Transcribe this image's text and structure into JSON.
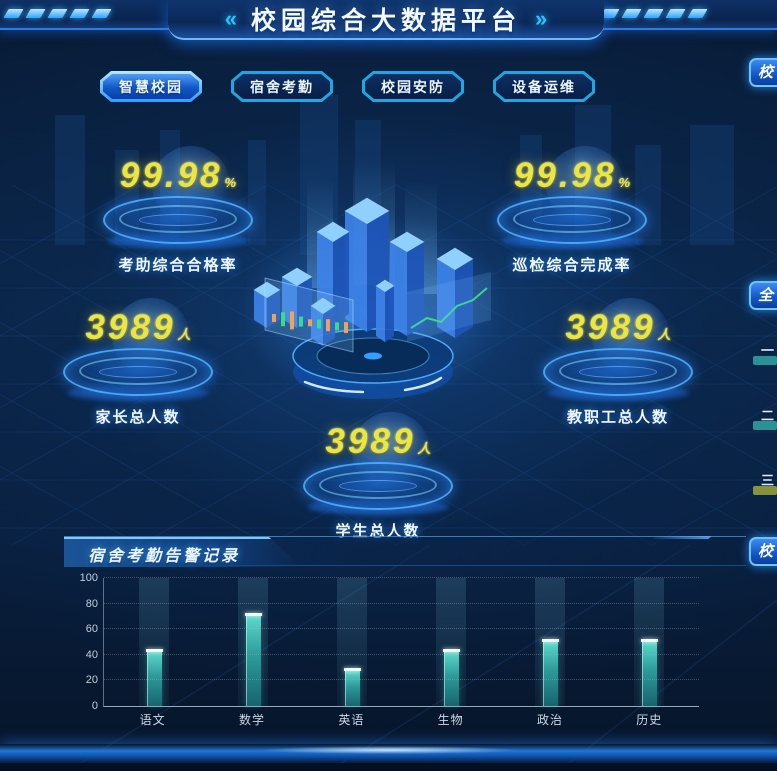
{
  "header": {
    "title": "校园综合大数据平台",
    "left_arrow": "«",
    "right_arrow": "»"
  },
  "tabs": [
    {
      "label": "智慧校园",
      "active": true
    },
    {
      "label": "宿舍考勤",
      "active": false
    },
    {
      "label": "校园安防",
      "active": false
    },
    {
      "label": "设备运维",
      "active": false
    }
  ],
  "stats": [
    {
      "value": "99.98",
      "unit": "%",
      "label": "考助综合合格率"
    },
    {
      "value": "99.98",
      "unit": "%",
      "label": "巡检综合完成率"
    },
    {
      "value": "3989",
      "unit": "人",
      "label": "家长总人数"
    },
    {
      "value": "3989",
      "unit": "人",
      "label": "教职工总人数"
    },
    {
      "value": "3989",
      "unit": "人",
      "label": "学生总人数"
    }
  ],
  "panel": {
    "title": "宿舍考勤告警记录"
  },
  "right_edge": {
    "top_tab": "校",
    "mid_tab": "全",
    "bottom_tab": "校",
    "rows": [
      {
        "label": "一",
        "bar_color": "#2e9e9e"
      },
      {
        "label": "二",
        "bar_color": "#2e9e9e"
      },
      {
        "label": "三",
        "bar_color": "#96a03c"
      }
    ]
  },
  "colors": {
    "accent_cyan": "#2fc0ff",
    "number_yellow": "#ece73f",
    "bar_teal": "#35b5ad",
    "background_navy": "#0a2547"
  },
  "chart_data": {
    "type": "bar",
    "title": "宿舍考勤告警记录",
    "categories": [
      "语文",
      "数学",
      "英语",
      "生物",
      "政治",
      "历史"
    ],
    "values": [
      42,
      70,
      27,
      42,
      50,
      50
    ],
    "xlabel": "",
    "ylabel": "",
    "ylim": [
      0,
      100
    ],
    "yticks": [
      0,
      20,
      40,
      60,
      80,
      100
    ],
    "grid": "dotted-horizontal",
    "legend": "none",
    "bar_color": "#35b5ad"
  }
}
